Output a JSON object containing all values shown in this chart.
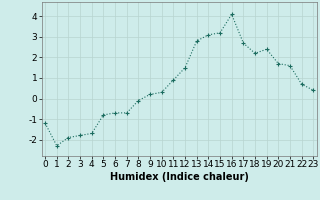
{
  "x": [
    0,
    1,
    2,
    3,
    4,
    5,
    6,
    7,
    8,
    9,
    10,
    11,
    12,
    13,
    14,
    15,
    16,
    17,
    18,
    19,
    20,
    21,
    22,
    23
  ],
  "y": [
    -1.2,
    -2.3,
    -1.9,
    -1.8,
    -1.7,
    -0.8,
    -0.7,
    -0.7,
    -0.1,
    0.2,
    0.3,
    0.9,
    1.5,
    2.8,
    3.1,
    3.2,
    4.1,
    2.7,
    2.2,
    2.4,
    1.7,
    1.6,
    0.7,
    0.4
  ],
  "line_color": "#1a6b5e",
  "marker": "+",
  "marker_size": 3,
  "linewidth": 0.8,
  "linestyle": "dotted",
  "bg_color": "#ceecea",
  "grid_color": "#b8d4d0",
  "xlabel": "Humidex (Indice chaleur)",
  "xlabel_fontsize": 7,
  "ytick_labels": [
    "4",
    "3",
    "2",
    "1",
    "0",
    "-1",
    "-2"
  ],
  "yticks": [
    4,
    3,
    2,
    1,
    0,
    -1,
    -2
  ],
  "xticks": [
    0,
    1,
    2,
    3,
    4,
    5,
    6,
    7,
    8,
    9,
    10,
    11,
    12,
    13,
    14,
    15,
    16,
    17,
    18,
    19,
    20,
    21,
    22,
    23
  ],
  "ylim": [
    -2.8,
    4.7
  ],
  "xlim": [
    -0.3,
    23.3
  ],
  "tick_fontsize": 6.5
}
